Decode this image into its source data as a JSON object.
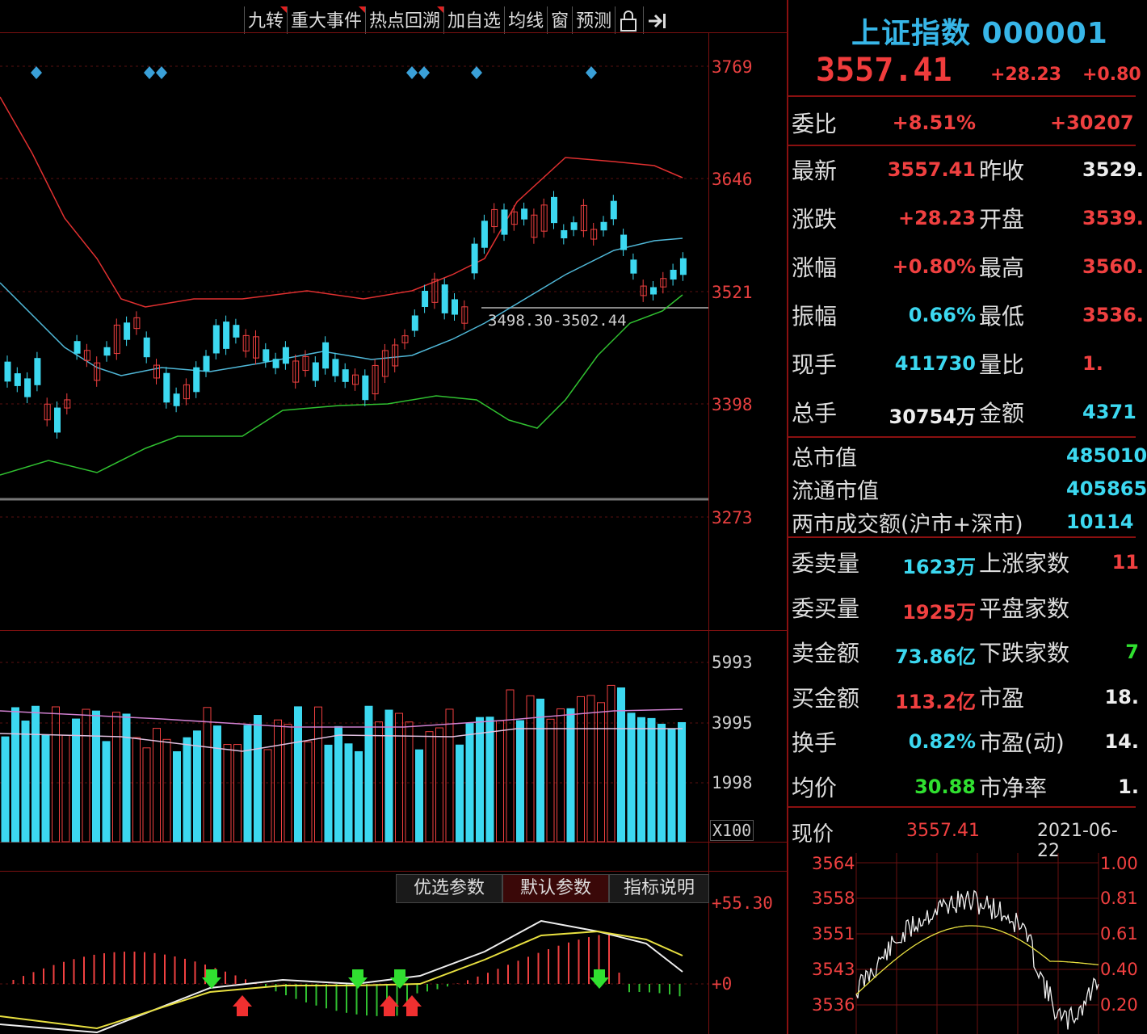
{
  "toolbar": {
    "items": [
      "九转",
      "重大事件",
      "热点回溯",
      "加自选",
      "均线",
      "窗",
      "预测"
    ],
    "lock_icon": "lock-icon",
    "exit_icon": "exit-arrow-icon"
  },
  "kline": {
    "price_axis": [
      "3769",
      "3646",
      "3521",
      "3398",
      "3273"
    ],
    "range_label": "3498.30-3502.44"
  },
  "volume": {
    "axis": [
      "5993",
      "3995",
      "1998"
    ],
    "unit": "X100"
  },
  "macd": {
    "tabs": [
      "优选参数",
      "默认参数",
      "指标说明"
    ],
    "axis": [
      "+55.30",
      "+0"
    ]
  },
  "quote": {
    "title": "上证指数 000001",
    "price": "3557.41",
    "change": "+28.23",
    "change_pct": "+0.80",
    "rows1": [
      {
        "label": "委比",
        "value": "+8.51%",
        "value2": "+30207"
      }
    ],
    "rows2": [
      {
        "l1": "最新",
        "v1": "3557.41",
        "c1": "red",
        "l2": "昨收",
        "v2": "3529.",
        "c2": "white"
      },
      {
        "l1": "涨跌",
        "v1": "+28.23",
        "c1": "red",
        "l2": "开盘",
        "v2": "3539.",
        "c2": "red"
      },
      {
        "l1": "涨幅",
        "v1": "+0.80%",
        "c1": "red",
        "l2": "最高",
        "v2": "3560.",
        "c2": "red"
      },
      {
        "l1": "振幅",
        "v1": "0.66%",
        "c1": "cyan",
        "l2": "最低",
        "v2": "3536.",
        "c2": "red"
      },
      {
        "l1": "现手",
        "v1": "411730",
        "c1": "cyan",
        "l2": "量比",
        "v2": "1.",
        "c2": "red"
      },
      {
        "l1": "总手",
        "v1": "30754万",
        "c1": "white",
        "l2": "金额",
        "v2": "4371",
        "c2": "cyan"
      }
    ],
    "rows3": [
      {
        "label": "总市值",
        "value": "485010"
      },
      {
        "label": "流通市值",
        "value": "405865"
      },
      {
        "label": "两市成交额(沪市+深市)",
        "value": "10114"
      }
    ],
    "rows4": [
      {
        "l1": "委卖量",
        "v1": "1623万",
        "c1": "cyan",
        "l2": "上涨家数",
        "v2": "11",
        "c2": "red"
      },
      {
        "l1": "委买量",
        "v1": "1925万",
        "c1": "red",
        "l2": "平盘家数",
        "v2": "",
        "c2": "white"
      },
      {
        "l1": "卖金额",
        "v1": "73.86亿",
        "c1": "cyan",
        "l2": "下跌家数",
        "v2": "7",
        "c2": "green"
      },
      {
        "l1": "买金额",
        "v1": "113.2亿",
        "c1": "red",
        "l2": "市盈",
        "v2": "18.",
        "c2": "white"
      },
      {
        "l1": "换手",
        "v1": "0.82%",
        "c1": "cyan",
        "l2": "市盈(动)",
        "v2": "14.",
        "c2": "white"
      },
      {
        "l1": "均价",
        "v1": "30.88",
        "c1": "green",
        "l2": "市净率",
        "v2": "1.",
        "c2": "white"
      }
    ],
    "now_label": "现价",
    "now_value": "3557.41",
    "date": "2021-06-22",
    "mini_left_axis": [
      "3564",
      "3558",
      "3551",
      "3543",
      "3536"
    ],
    "mini_right_axis": [
      "1.00",
      "0.81",
      "0.61",
      "0.40",
      "0.20"
    ]
  },
  "colors": {
    "up": "#f04040",
    "down": "#3cd8f0",
    "grid": "#7a1010",
    "ma_upper": "#e03030",
    "ma_mid": "#50b8d8",
    "ma_lower": "#30c030"
  }
}
